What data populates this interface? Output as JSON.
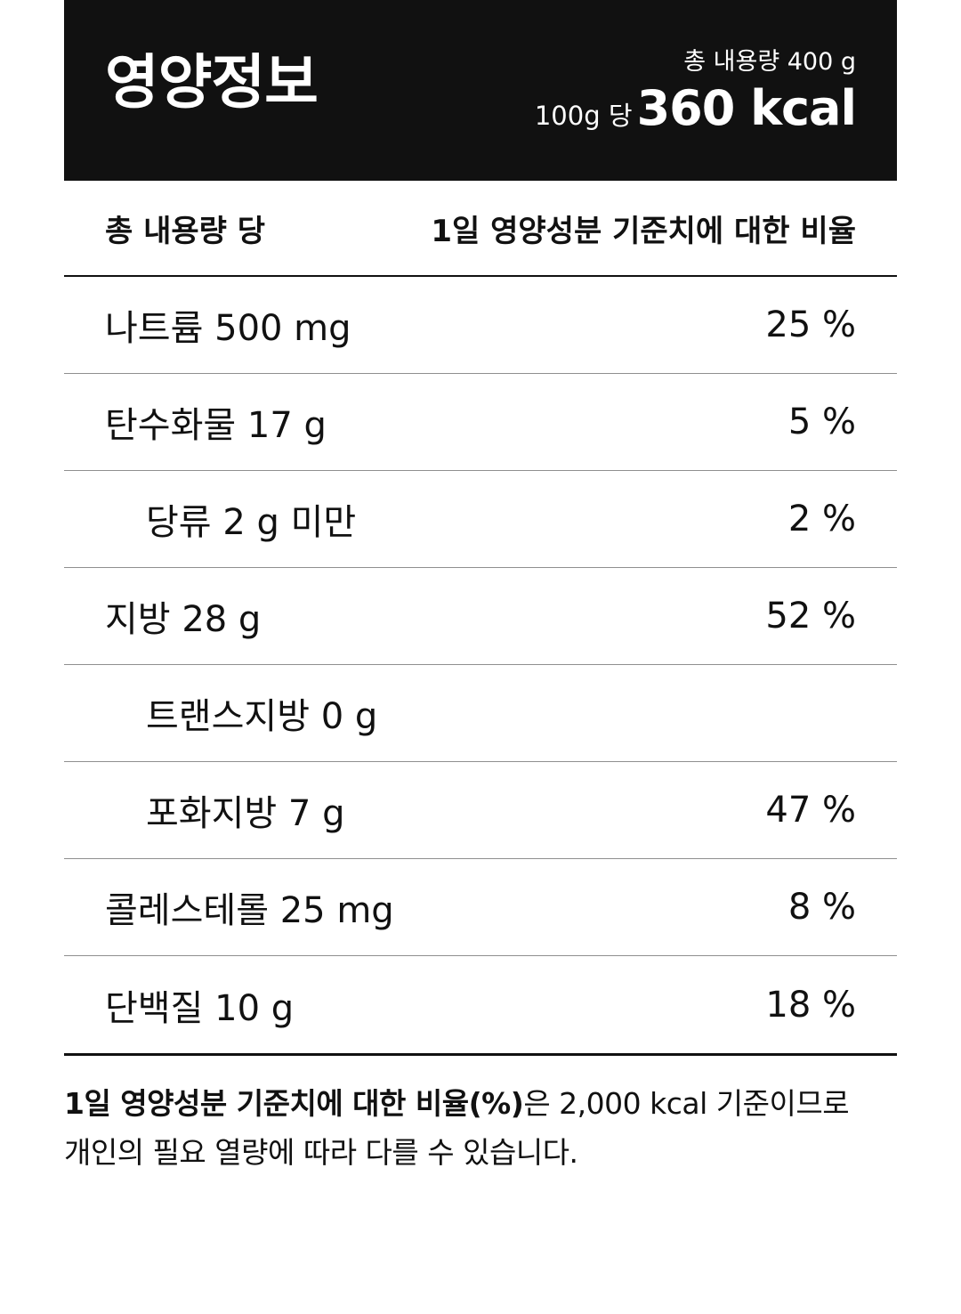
{
  "header": {
    "title": "영양정보",
    "total_content": "총 내용량 400 g",
    "kcal_prefix": "100g 당",
    "kcal_value": "360 kcal"
  },
  "columns": {
    "left": "총 내용량 당",
    "right": "1일 영양성분 기준치에 대한 비율"
  },
  "rows": [
    {
      "label": "나트륨 500 mg",
      "value": "25 %"
    },
    {
      "label": "탄수화물 17 g",
      "value": "5 %"
    },
    {
      "label": "당류 2 g 미만",
      "value": "2 %"
    },
    {
      "label": "지방 28 g",
      "value": "52 %"
    },
    {
      "label": "트랜스지방 0 g",
      "value": ""
    },
    {
      "label": "포화지방 7 g",
      "value": "47 %"
    },
    {
      "label": "콜레스테롤 25 mg",
      "value": "8 %"
    },
    {
      "label": "단백질 10 g",
      "value": "18 %"
    }
  ],
  "footnote": {
    "bold": "1일 영양성분 기준치에 대한 비율(%)",
    "line1_rest": "은 2,000 kcal 기준이므로",
    "line2": "개인의 필요 열량에 따라 다를 수 있습니다."
  }
}
